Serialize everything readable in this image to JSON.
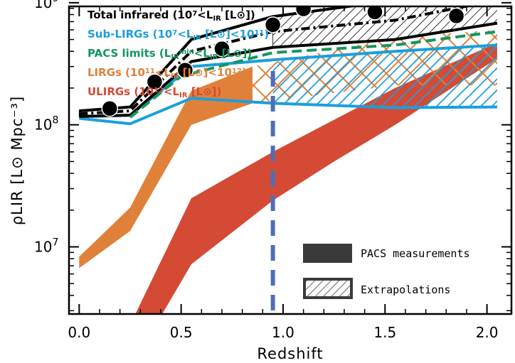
{
  "chart_data": {
    "type": "area",
    "xlabel": "Redshift",
    "ylabel": "ρLIR [L⊙ Mpc⁻³]",
    "xlim": [
      -0.05,
      2.12
    ],
    "ylim_log10": [
      6.45,
      8.97
    ],
    "yscale": "log",
    "x_ticks": [
      {
        "value": 0.0,
        "label": "0.0"
      },
      {
        "value": 0.5,
        "label": "0.5"
      },
      {
        "value": 1.0,
        "label": "1.0"
      },
      {
        "value": 1.5,
        "label": "1.5"
      },
      {
        "value": 2.0,
        "label": "2.0"
      }
    ],
    "y_ticks": [
      {
        "value": 10000000,
        "label": "10",
        "exp": "7"
      },
      {
        "value": 100000000,
        "label": "10",
        "exp": "8"
      },
      {
        "value": 1000000000,
        "label": "10",
        "exp": "9"
      }
    ],
    "legend": [
      {
        "name": "total",
        "color": "#000000",
        "parts": [
          [
            "Total infrared (10",
            ""
          ],
          [
            "7",
            "sup"
          ],
          [
            "<L",
            ""
          ],
          [
            "IR",
            "sub"
          ],
          [
            " [L",
            ""
          ],
          [
            "⊙",
            ""
          ],
          [
            "])",
            ""
          ]
        ]
      },
      {
        "name": "sub-lirg",
        "color": "#1a9fdc",
        "parts": [
          [
            "Sub-LIRGs (10",
            ""
          ],
          [
            "7",
            "sup"
          ],
          [
            "<L",
            ""
          ],
          [
            "IR",
            "sub"
          ],
          [
            " [L",
            ""
          ],
          [
            "⊙",
            ""
          ],
          [
            "]<10",
            ""
          ],
          [
            "11",
            "sup"
          ],
          [
            ")",
            ""
          ]
        ]
      },
      {
        "name": "pacs-limits",
        "color": "#14965e",
        "parts": [
          [
            "PACS limits (L",
            ""
          ],
          [
            "IR",
            "sub"
          ],
          [
            "min",
            "sup"
          ],
          [
            "<L",
            ""
          ],
          [
            "IR",
            "sub"
          ],
          [
            " [L",
            ""
          ],
          [
            "⊙",
            ""
          ],
          [
            "])",
            ""
          ]
        ]
      },
      {
        "name": "lirg",
        "color": "#e0813a",
        "parts": [
          [
            "LIRGs (10",
            ""
          ],
          [
            "11",
            "sup"
          ],
          [
            "<L",
            ""
          ],
          [
            "IR",
            "sub"
          ],
          [
            " [L",
            ""
          ],
          [
            "⊙",
            ""
          ],
          [
            "]<10",
            ""
          ],
          [
            "12",
            "sup"
          ],
          [
            ")",
            ""
          ]
        ]
      },
      {
        "name": "ulirg",
        "color": "#d54a34",
        "parts": [
          [
            "ULIRGs (10",
            ""
          ],
          [
            "12",
            "sup"
          ],
          [
            "<L",
            ""
          ],
          [
            "IR",
            "sub"
          ],
          [
            " [L",
            ""
          ],
          [
            "⊙",
            ""
          ],
          [
            "])",
            ""
          ]
        ]
      }
    ],
    "key": {
      "pacs_label": "PACS measurements",
      "extrap_label": "Extrapolations"
    },
    "series": {
      "total_band": {
        "color": "#000000",
        "measured_x": [
          0.0,
          0.25,
          0.55,
          0.95
        ],
        "x": [
          0.0,
          0.25,
          0.55,
          0.95,
          1.55,
          2.05
        ],
        "upper": [
          130000000,
          140000000,
          500000000,
          770000000,
          1050000000,
          1650000000
        ],
        "lower": [
          117000000,
          120000000,
          330000000,
          430000000,
          500000000,
          680000000
        ]
      },
      "total_center": {
        "color": "#000000",
        "x": [
          0.0,
          0.25,
          0.55,
          0.95,
          1.55,
          2.05
        ],
        "y": [
          123000000,
          130000000,
          400000000,
          580000000,
          720000000,
          1050000000
        ]
      },
      "total_points": {
        "color": "#000000",
        "x": [
          0.15,
          0.37,
          0.52,
          0.7,
          0.95,
          1.1,
          1.45,
          1.85
        ],
        "y": [
          136000000,
          225000000,
          280000000,
          420000000,
          660000000,
          890000000,
          840000000,
          780000000
        ]
      },
      "pacs_limits": {
        "color": "#14965e",
        "x": [
          0.25,
          0.5,
          0.95,
          1.55,
          2.05
        ],
        "y": [
          115000000,
          250000000,
          390000000,
          450000000,
          580000000
        ]
      },
      "sub_lirg_band": {
        "color": "#1a9fdc",
        "measured_x": [
          0.0,
          0.25,
          0.55,
          0.95
        ],
        "x": [
          0.0,
          0.25,
          0.55,
          0.95,
          1.55,
          2.05
        ],
        "upper": [
          117000000,
          120000000,
          300000000,
          340000000,
          400000000,
          450000000
        ],
        "lower": [
          113000000,
          102000000,
          165000000,
          150000000,
          138000000,
          140000000
        ]
      },
      "lirg_band": {
        "color": "#e0813a",
        "measured_x": [
          0.0,
          0.25,
          0.55,
          0.85
        ],
        "x": [
          0.0,
          0.25,
          0.55,
          0.85,
          1.55,
          2.05
        ],
        "upper": [
          8300000,
          21000000,
          190000000,
          300000000,
          520000000,
          600000000
        ],
        "lower": [
          6700000,
          13500000,
          100000000,
          150000000,
          210000000,
          210000000
        ]
      },
      "ulirg_band": {
        "color": "#d54a34",
        "x": [
          0.25,
          0.55,
          0.95,
          1.25,
          1.55,
          2.05
        ],
        "upper": [
          2300000,
          25000000,
          60000000,
          110000000,
          200000000,
          470000000
        ],
        "lower": [
          1000000,
          7200000,
          24000000,
          50000000,
          100000000,
          350000000
        ]
      },
      "redshift_marker": {
        "color": "#4d6fb9",
        "x": 0.95
      }
    }
  }
}
